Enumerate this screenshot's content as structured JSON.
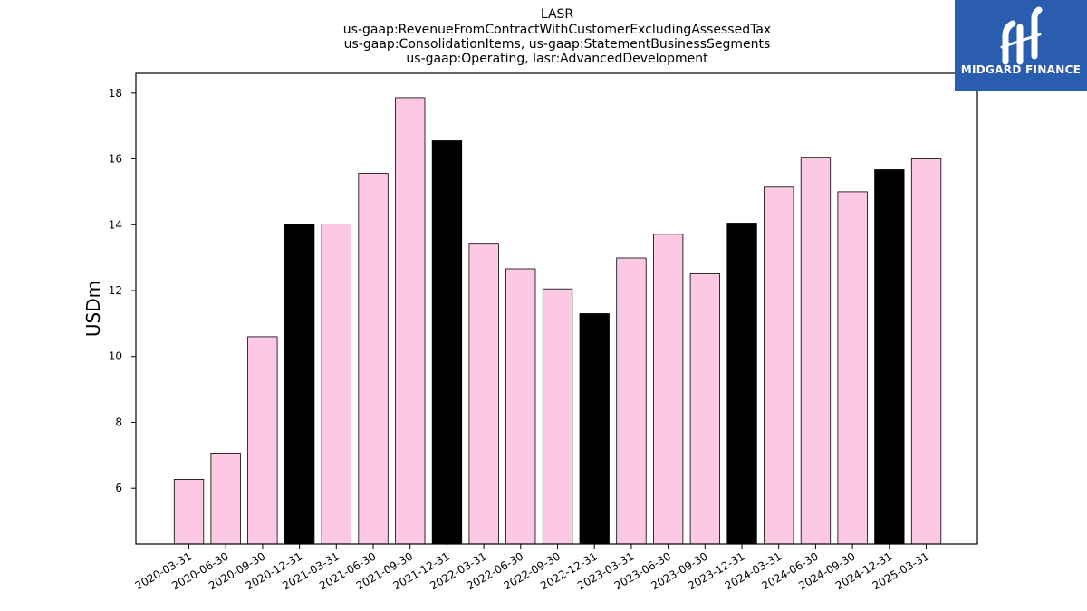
{
  "chart_data": {
    "type": "bar",
    "title_lines": [
      "LASR",
      "us-gaap:RevenueFromContractWithCustomerExcludingAssessedTax",
      "us-gaap:ConsolidationItems, us-gaap:StatementBusinessSegments",
      "us-gaap:Operating, lasr:AdvancedDevelopment"
    ],
    "xlabel": "",
    "ylabel": "USDm",
    "ylim": [
      4.3,
      18.6
    ],
    "yticks": [
      6,
      8,
      10,
      12,
      14,
      16,
      18
    ],
    "grid": false,
    "legend": "none",
    "categories": [
      "2020-03-31",
      "2020-06-30",
      "2020-09-30",
      "2020-12-31",
      "2021-03-31",
      "2021-06-30",
      "2021-09-30",
      "2021-12-31",
      "2022-03-31",
      "2022-06-30",
      "2022-09-30",
      "2022-12-31",
      "2023-03-31",
      "2023-06-30",
      "2023-09-30",
      "2023-12-31",
      "2024-03-31",
      "2024-06-30",
      "2024-09-30",
      "2024-12-31",
      "2025-03-31"
    ],
    "values": [
      6.27,
      7.04,
      10.6,
      14.02,
      14.02,
      15.56,
      17.86,
      16.55,
      13.41,
      12.66,
      12.05,
      11.3,
      12.99,
      13.71,
      12.51,
      14.05,
      15.14,
      16.05,
      15.0,
      15.67,
      16.0
    ],
    "highlight_color": "#000000",
    "bar_color": "#fcc8e4",
    "highlighted": [
      false,
      false,
      false,
      true,
      false,
      false,
      false,
      true,
      false,
      false,
      false,
      true,
      false,
      false,
      false,
      true,
      false,
      false,
      false,
      true,
      false
    ]
  },
  "logo": {
    "text": "MIDGARD FINANCE",
    "background": "#2a5db0"
  }
}
